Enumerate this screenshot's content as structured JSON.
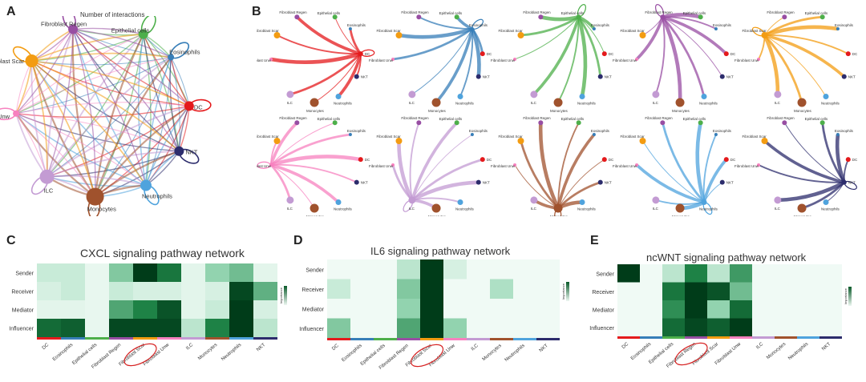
{
  "panels": {
    "A": "A",
    "B": "B",
    "C": "C",
    "D": "D",
    "E": "E"
  },
  "panel_a": {
    "title": "Number of interactions"
  },
  "cells": [
    "DC",
    "Eosinophils",
    "Epithelial cells",
    "Fibroblast Regen",
    "Fibroblast Scar",
    "Fibroblast Unw",
    "ILC",
    "Monocytes",
    "Neutrophils",
    "NKT"
  ],
  "colors": {
    "DC": "#e41a1c",
    "Eosinophils": "#377eb8",
    "Epithelial cells": "#4daf4a",
    "Fibroblast Regen": "#984ea3",
    "Fibroblast Scar": "#f39c12",
    "Fibroblast Unw": "#f781bf",
    "ILC": "#c39bd3",
    "Monocytes": "#a0522d",
    "Neutrophils": "#4fa3dd",
    "NKT": "#2c2c6c"
  },
  "network_nodes": [
    {
      "label": "Epithelial cells",
      "short": "Epithelial cells",
      "color": "#4daf4a",
      "size": 6
    },
    {
      "label": "Eosinophils",
      "short": "Eosinophils",
      "color": "#377eb8",
      "size": 4
    },
    {
      "label": "DC",
      "short": "DC",
      "color": "#e41a1c",
      "size": 6
    },
    {
      "label": "NKT",
      "short": "NKT",
      "color": "#2c2c6c",
      "size": 6
    },
    {
      "label": "Neutrophils",
      "short": "Neutrophils",
      "color": "#4fa3dd",
      "size": 7
    },
    {
      "label": "Monocytes",
      "short": "Monocytes",
      "color": "#a0522d",
      "size": 11
    },
    {
      "label": "ILC",
      "short": "ILC",
      "color": "#c39bd3",
      "size": 9
    },
    {
      "label": "Fibroblast Unw",
      "short": "Fibroblast Unw",
      "color": "#f781bf",
      "size": 4
    },
    {
      "label": "Fibroblast Scar",
      "short": "Fibroblast Scar",
      "color": "#f39c12",
      "size": 8
    },
    {
      "label": "Fibroblast Regen",
      "short": "Fibroblast Regen",
      "color": "#984ea3",
      "size": 6
    }
  ],
  "panel_b_sources": [
    "DC",
    "Eosinophils",
    "Epithelial cells",
    "Fibroblast Regen",
    "Fibroblast Scar",
    "Fibroblast Unw",
    "ILC",
    "Monocytes",
    "Neutrophils",
    "NKT"
  ],
  "chart_data": [
    {
      "type": "heatmap",
      "panel": "C",
      "title": "CXCL signaling pathway network",
      "rows": [
        "Sender",
        "Receiver",
        "Mediator",
        "Influencer"
      ],
      "columns": [
        "DC",
        "Eosinophils",
        "Epithelial cells",
        "Fibroblast Regen",
        "Fibroblast Scar",
        "Fibroblast Unw",
        "ILC",
        "Monocytes",
        "Neutrophils",
        "NKT"
      ],
      "values": [
        [
          0.15,
          0.15,
          0.03,
          0.4,
          1.0,
          0.75,
          0.05,
          0.35,
          0.45,
          0.05
        ],
        [
          0.1,
          0.15,
          0.03,
          0.15,
          0.1,
          0.1,
          0.05,
          0.1,
          0.95,
          0.5
        ],
        [
          0.05,
          0.05,
          0.03,
          0.55,
          0.7,
          0.9,
          0.05,
          0.15,
          1.0,
          0.1
        ],
        [
          0.8,
          0.85,
          0.03,
          0.95,
          0.95,
          0.95,
          0.2,
          0.7,
          1.0,
          0.2
        ]
      ],
      "highlight_column": "Fibroblast Scar",
      "legend_label": "Importance"
    },
    {
      "type": "heatmap",
      "panel": "D",
      "title": "IL6 signaling pathway network",
      "rows": [
        "Sender",
        "Receiver",
        "Mediator",
        "Influencer"
      ],
      "columns": [
        "DC",
        "Eosinophils",
        "Epithelial cells",
        "Fibroblast Regen",
        "Fibroblast Scar",
        "Fibroblast Unw",
        "ILC",
        "Monocytes",
        "Neutrophils",
        "NKT"
      ],
      "values": [
        [
          0.0,
          0.0,
          0.0,
          0.2,
          1.0,
          0.1,
          0.0,
          0.0,
          0.0,
          0.0
        ],
        [
          0.15,
          0.0,
          0.0,
          0.4,
          1.0,
          0.0,
          0.0,
          0.25,
          0.0,
          0.0
        ],
        [
          0.0,
          0.0,
          0.0,
          0.35,
          1.0,
          0.0,
          0.0,
          0.0,
          0.0,
          0.0
        ],
        [
          0.4,
          0.0,
          0.0,
          0.55,
          1.0,
          0.35,
          0.0,
          0.0,
          0.0,
          0.0
        ]
      ],
      "highlight_column": "Fibroblast Scar",
      "legend_label": "Importance"
    },
    {
      "type": "heatmap",
      "panel": "E",
      "title": "ncWNT signaling pathway network",
      "rows": [
        "Sender",
        "Receiver",
        "Mediator",
        "Influencer"
      ],
      "columns": [
        "DC",
        "Eosinophils",
        "Epithelial cells",
        "Fibroblast Regen",
        "Fibroblast Scar",
        "Fibroblast Unw",
        "ILC",
        "Monocytes",
        "Neutrophils",
        "NKT"
      ],
      "values": [
        [
          1.0,
          0.0,
          0.2,
          0.7,
          0.2,
          0.6,
          0.0,
          0.0,
          0.0,
          0.0
        ],
        [
          0.0,
          0.0,
          0.75,
          1.0,
          0.9,
          0.45,
          0.0,
          0.0,
          0.0,
          0.0
        ],
        [
          0.0,
          0.0,
          0.65,
          1.0,
          0.35,
          0.8,
          0.0,
          0.0,
          0.0,
          0.0
        ],
        [
          0.0,
          0.0,
          0.8,
          0.95,
          0.85,
          1.0,
          0.0,
          0.0,
          0.0,
          0.0
        ]
      ],
      "highlight_column": "Fibroblast Regen",
      "legend_label": "Importance"
    }
  ]
}
